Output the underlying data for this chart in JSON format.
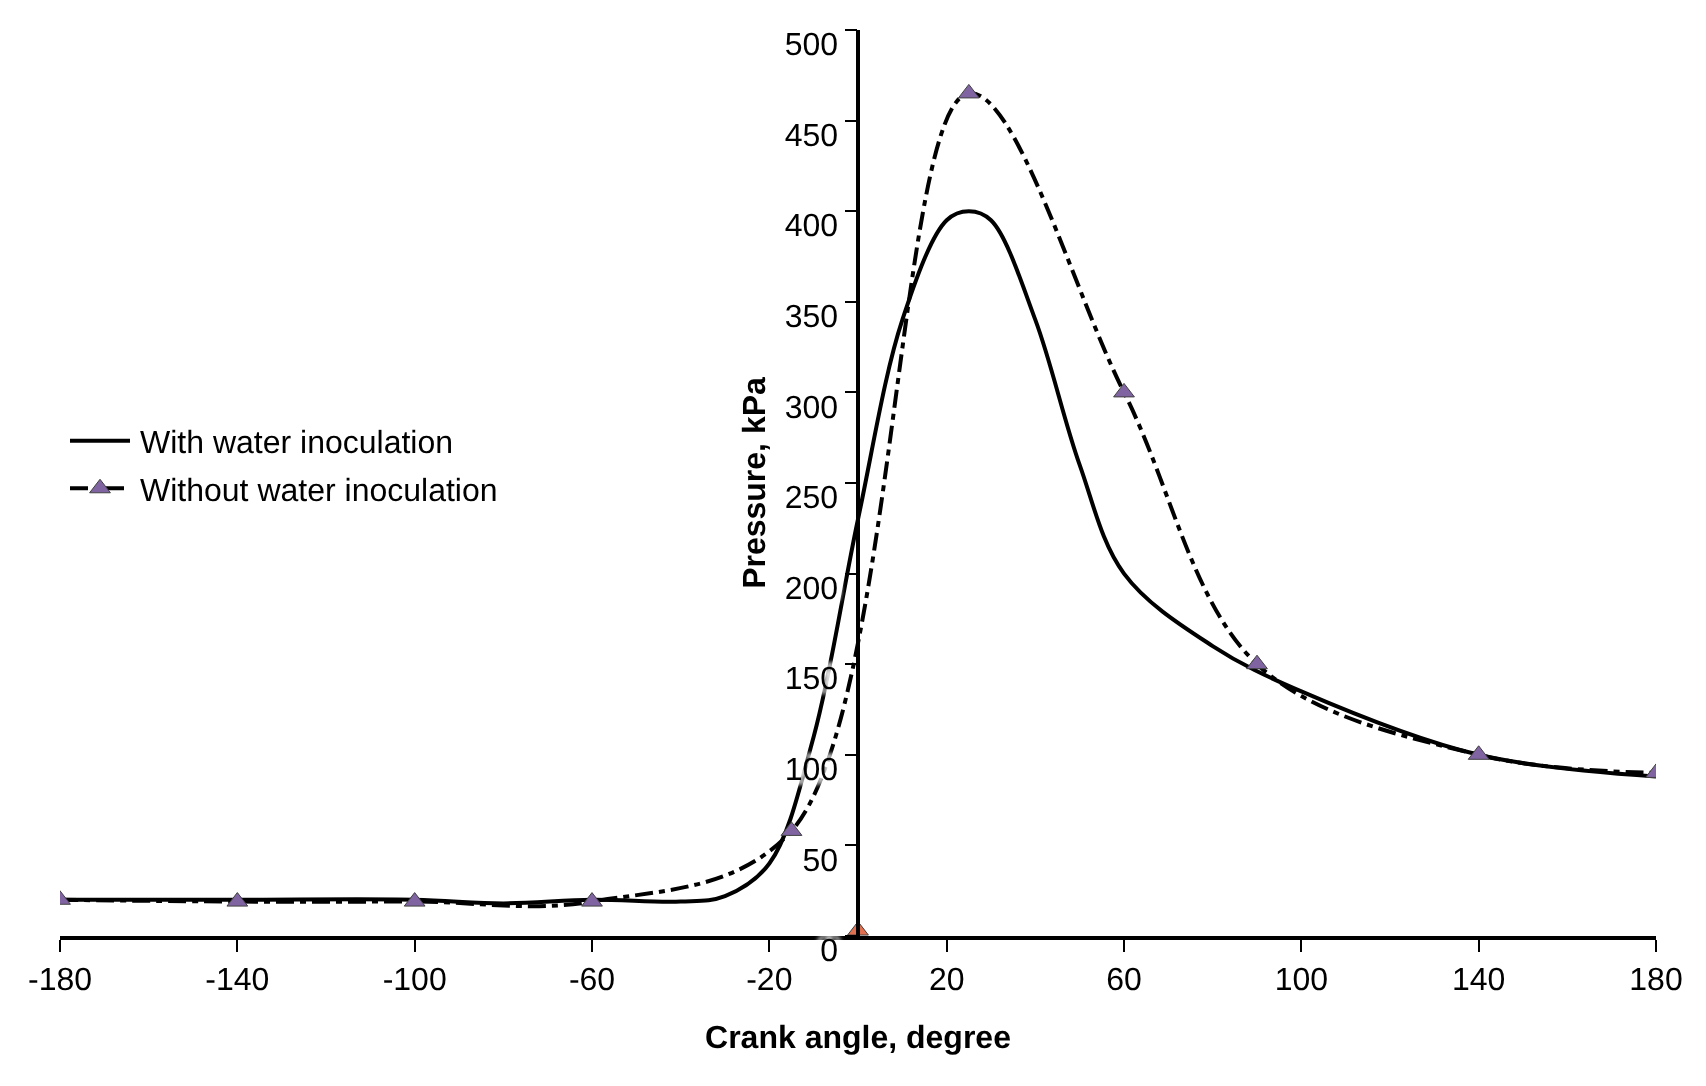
{
  "chart_data": {
    "type": "line",
    "xlabel": "Crank angle, degree",
    "ylabel": "Pressure, kPa",
    "xlim": [
      -180,
      180
    ],
    "xticks": [
      -180,
      -140,
      -100,
      -60,
      -20,
      20,
      60,
      100,
      140,
      180
    ],
    "ylim": [
      0,
      500
    ],
    "yticks": [
      0,
      50,
      100,
      150,
      200,
      250,
      300,
      350,
      400,
      450,
      500
    ],
    "legend": "left",
    "series": [
      {
        "name": "With water inoculation",
        "color": "#000000",
        "line_style": "solid",
        "marker": "none",
        "x": [
          -180,
          -140,
          -100,
          -80,
          -60,
          -40,
          -30,
          -20,
          -10,
          0,
          10,
          20,
          25,
          30,
          40,
          50,
          60,
          80,
          100,
          140,
          180
        ],
        "values": [
          20,
          20,
          20,
          18,
          20,
          19,
          22,
          40,
          110,
          230,
          340,
          395,
          400,
          395,
          340,
          260,
          200,
          160,
          135,
          100,
          88
        ]
      },
      {
        "name": "Without water inoculation",
        "color": "#000000",
        "line_style": "dashed",
        "marker": "triangle",
        "colors": [
          "#8064a2",
          "#8064a2",
          "#8064a2",
          "#8064a2",
          "#8064a2",
          "#8064a2",
          "#8064a2",
          "#8064a2",
          "#8064a2",
          "#8064a2"
        ],
        "x": [
          -180,
          -140,
          -100,
          -60,
          -15,
          25,
          60,
          90,
          140,
          180
        ],
        "values": [
          20,
          19,
          19,
          19,
          58,
          465,
          300,
          150,
          100,
          90
        ]
      },
      {
        "type": "scatter",
        "color": "#e07050",
        "marker": "triangle",
        "x": [
          0
        ],
        "values": [
          3
        ]
      }
    ]
  }
}
